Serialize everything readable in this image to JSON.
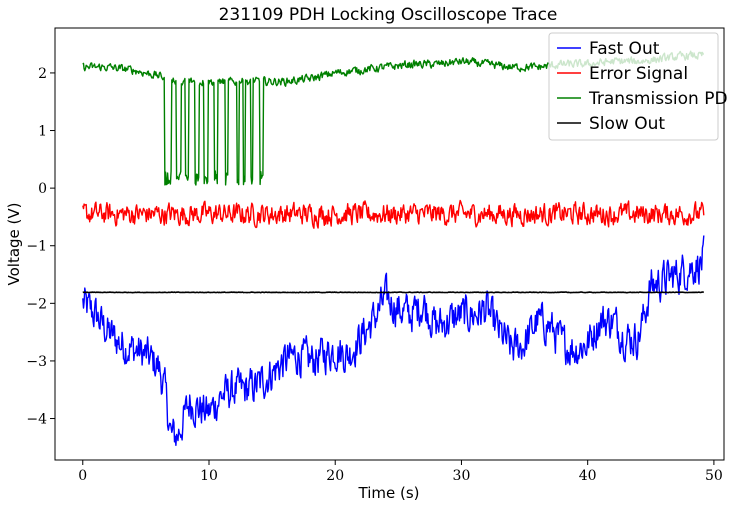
{
  "chart_data": {
    "type": "line",
    "title": "231109 PDH Locking Oscilloscope Trace",
    "xlabel": "Time (s)",
    "ylabel": "Voltage (V)",
    "xlim": [
      -2.2,
      50.8
    ],
    "ylim": [
      -4.72,
      2.78
    ],
    "xticks": [
      0,
      10,
      20,
      30,
      40,
      50
    ],
    "xtick_labels": [
      "0",
      "10",
      "20",
      "30",
      "40",
      "50"
    ],
    "yticks": [
      -4,
      -3,
      -2,
      -1,
      0,
      1,
      2
    ],
    "ytick_labels": [
      "−4",
      "−3",
      "−2",
      "−1",
      "0",
      "1",
      "2"
    ],
    "grid": false,
    "legend_position": "top-right",
    "series": [
      {
        "name": "Fast Out",
        "color": "#0000ff",
        "noise": 0.28,
        "x": [
          0,
          1,
          2,
          3,
          4,
          5,
          6,
          6.5,
          7,
          7.5,
          8,
          8.5,
          9,
          10,
          11,
          12,
          13,
          14,
          15,
          16,
          17,
          18,
          19,
          20,
          21,
          22,
          23,
          24,
          25,
          26,
          27,
          28,
          29,
          30,
          31,
          32,
          33,
          34,
          35,
          36,
          37,
          38,
          39,
          40,
          41,
          42,
          43,
          44,
          44.5,
          45,
          46,
          47,
          48,
          49,
          49.2
        ],
        "y": [
          -2.0,
          -2.2,
          -2.5,
          -2.7,
          -2.8,
          -2.9,
          -3.1,
          -3.5,
          -4.3,
          -4.3,
          -4.0,
          -3.7,
          -3.8,
          -3.9,
          -3.6,
          -3.5,
          -3.5,
          -3.4,
          -3.2,
          -3.0,
          -2.9,
          -3.0,
          -2.9,
          -2.8,
          -2.9,
          -2.6,
          -2.3,
          -1.9,
          -2.1,
          -2.2,
          -2.0,
          -2.4,
          -2.3,
          -2.2,
          -2.2,
          -2.1,
          -2.5,
          -2.8,
          -2.7,
          -2.3,
          -2.4,
          -2.7,
          -2.8,
          -2.7,
          -2.3,
          -2.3,
          -2.6,
          -2.6,
          -2.2,
          -1.7,
          -1.6,
          -1.5,
          -1.4,
          -1.3,
          -1.2
        ]
      },
      {
        "name": "Error Signal",
        "color": "#ff0000",
        "noise": 0.16,
        "x": [
          0,
          49.2
        ],
        "y": [
          -0.45,
          -0.45
        ]
      },
      {
        "name": "Transmission PD",
        "color": "#008000",
        "noise": 0.06,
        "x": [
          0,
          2,
          4,
          6,
          7,
          8,
          10,
          12,
          14,
          16,
          18,
          20,
          22,
          24,
          26,
          28,
          30,
          32,
          34,
          36,
          38,
          40,
          42,
          44,
          46,
          48,
          49.2
        ],
        "y": [
          2.1,
          2.1,
          2.05,
          1.95,
          1.9,
          1.85,
          1.85,
          1.85,
          1.85,
          1.85,
          1.9,
          2.0,
          2.05,
          2.1,
          2.15,
          2.15,
          2.2,
          2.15,
          2.1,
          2.1,
          2.15,
          2.15,
          2.2,
          2.2,
          2.25,
          2.3,
          2.3
        ],
        "dips": [
          [
            6.5,
            7.0
          ],
          [
            7.4,
            7.8
          ],
          [
            8.1,
            8.4
          ],
          [
            8.9,
            9.2
          ],
          [
            9.6,
            9.9
          ],
          [
            10.4,
            10.7
          ],
          [
            11.3,
            11.5
          ],
          [
            12.2,
            12.4
          ],
          [
            12.7,
            12.9
          ],
          [
            13.3,
            13.5
          ],
          [
            14.0,
            14.3
          ]
        ]
      },
      {
        "name": "Slow Out",
        "color": "#000000",
        "noise": 0.004,
        "x": [
          0,
          49.2
        ],
        "y": [
          -1.81,
          -1.81
        ]
      }
    ]
  }
}
